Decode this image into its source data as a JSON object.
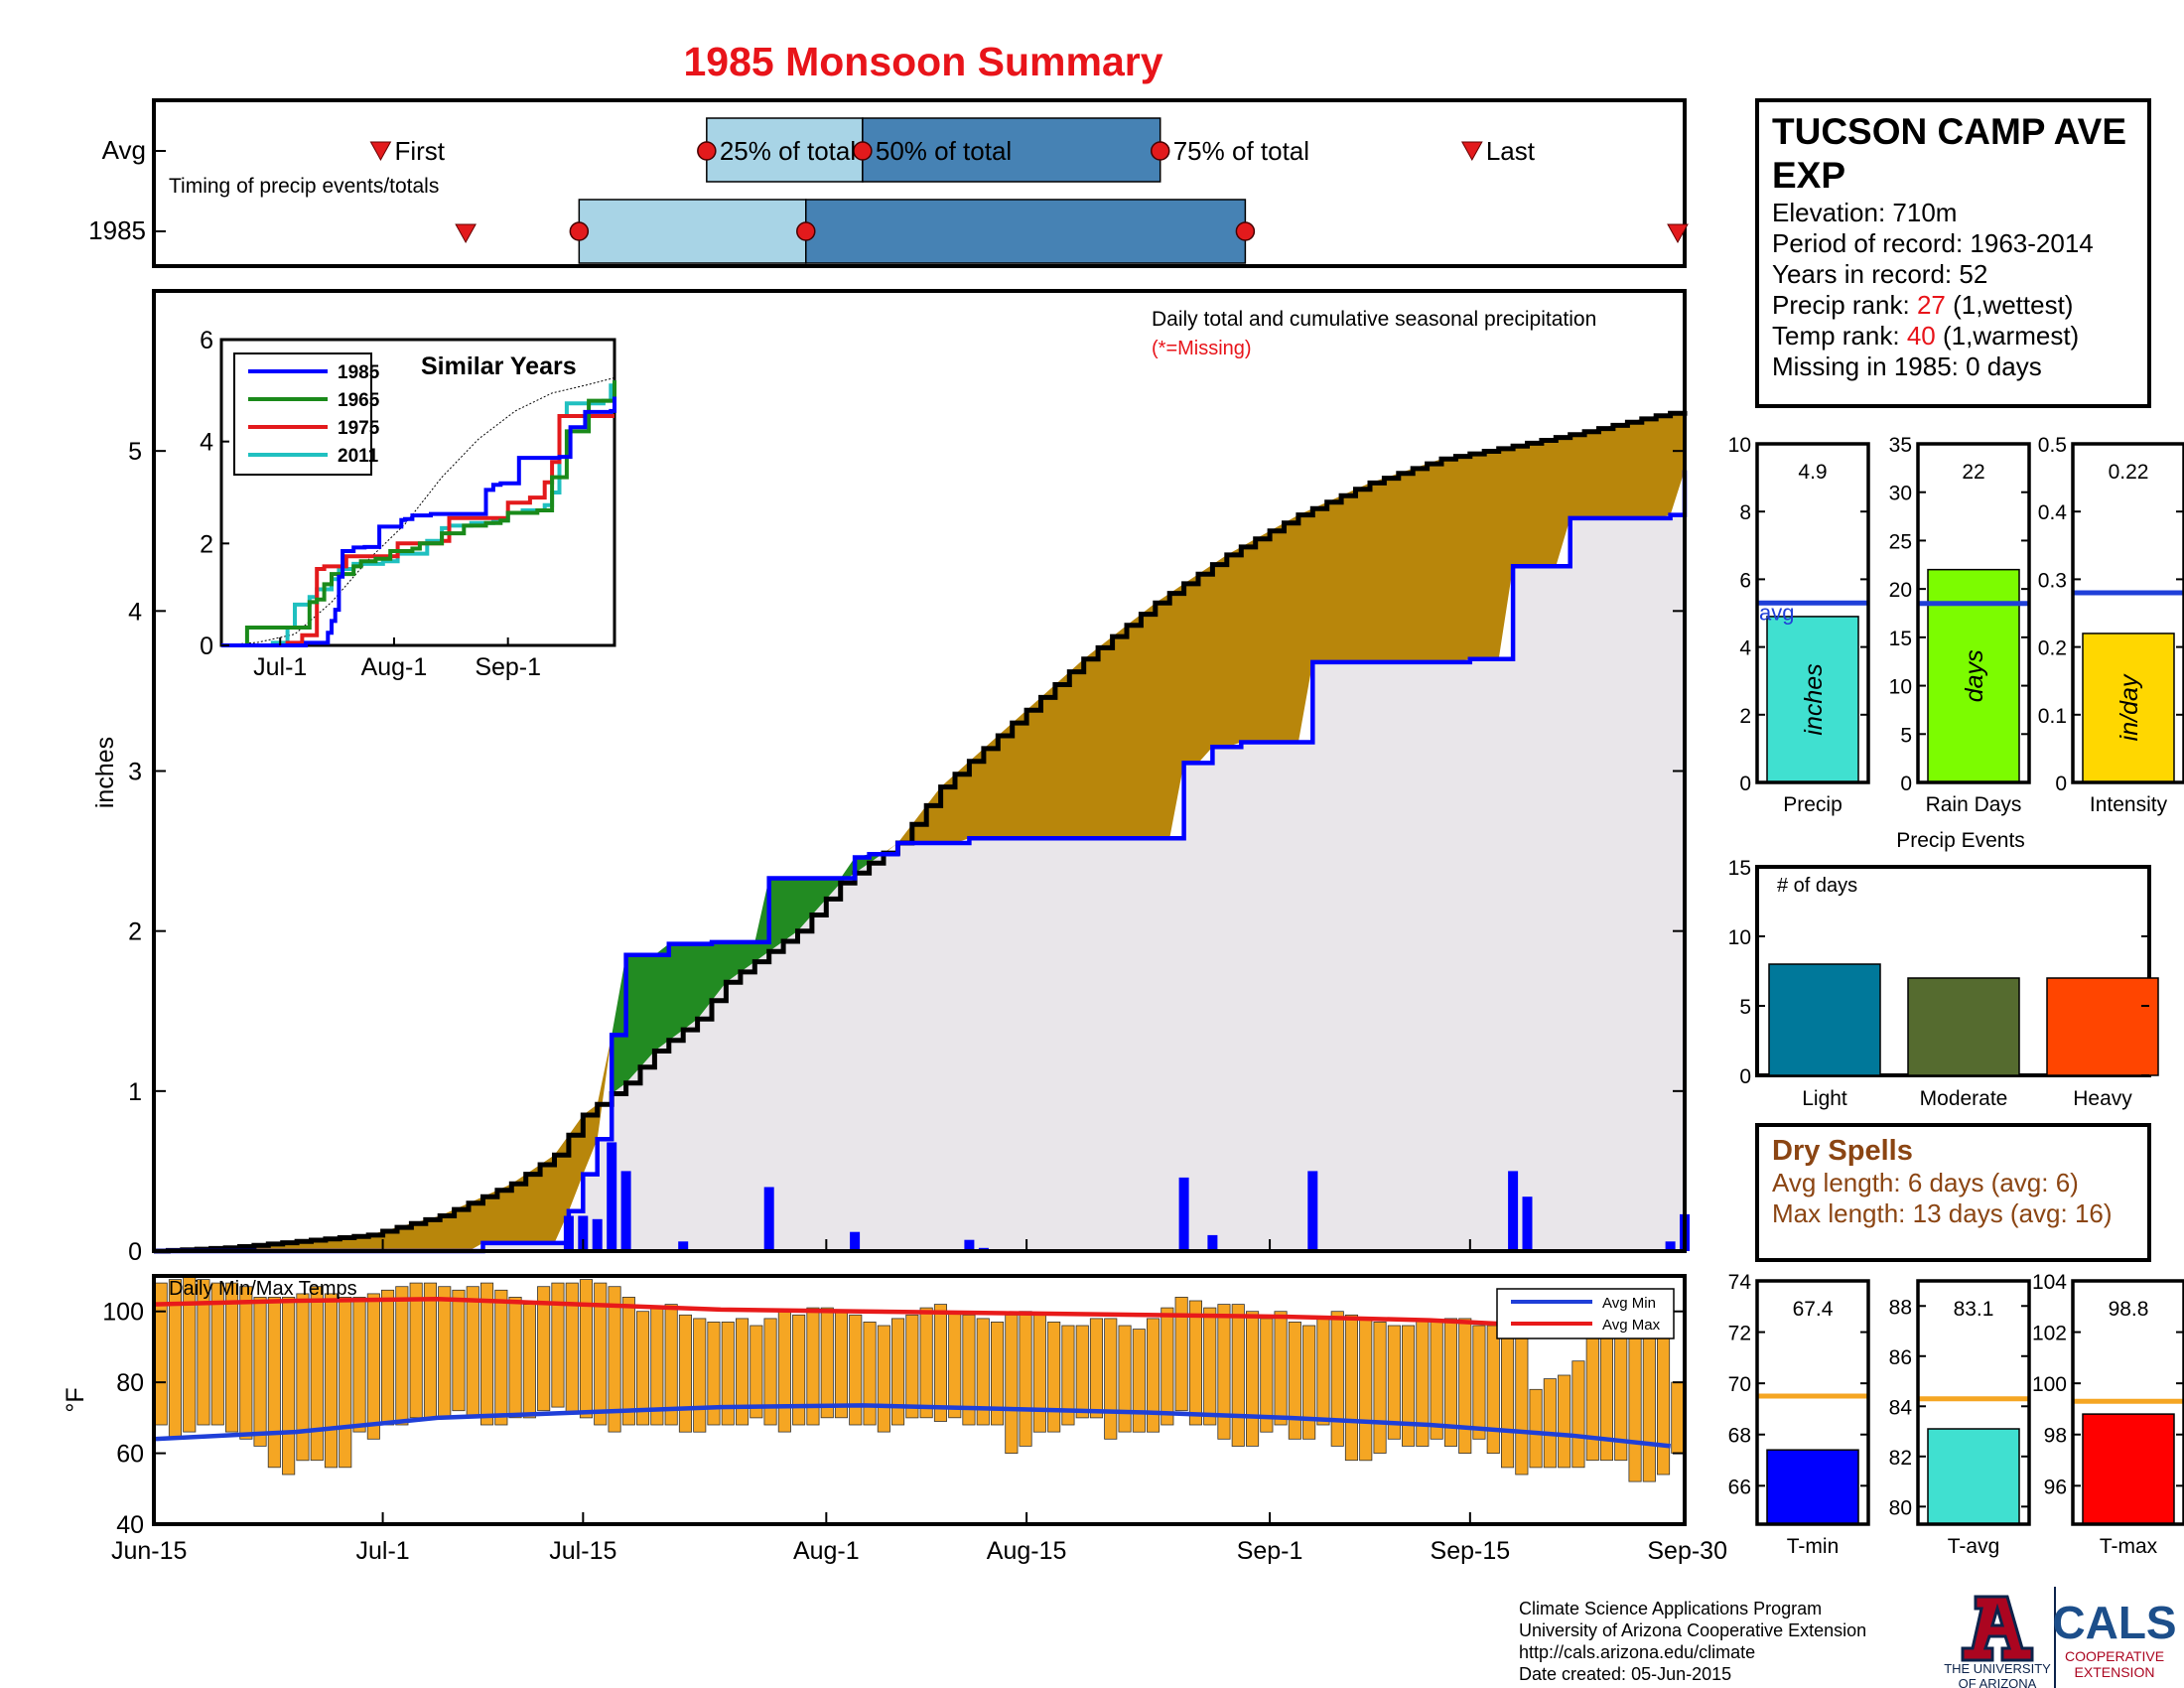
{
  "title": "1985 Monsoon Summary",
  "timing": {
    "row_avg": "Avg",
    "row_year": "1985",
    "subtitle": "Timing of precip events/totals",
    "first_label": "First",
    "q25_label": "25% of total",
    "q50_label": "50% of total",
    "q75_label": "75% of total",
    "last_label": "Last",
    "avg": {
      "first": 16,
      "q25": 39,
      "q50": 50,
      "q75": 71,
      "last": 93
    },
    "year": {
      "first": 22,
      "q25": 30,
      "q50": 46,
      "q75": 77,
      "last": 108
    },
    "colors": {
      "light": "#a8d4e6",
      "dark": "#4682b4",
      "marker": "#e31a1c"
    }
  },
  "station": {
    "name_line1": "TUCSON CAMP AVE",
    "name_line2": "EXP",
    "elevation": "Elevation: 710m",
    "period": "Period of record: 1963-2014",
    "years": "Years in record: 52",
    "precip_rank_label": "Precip rank: ",
    "precip_rank_value": "27",
    "precip_rank_note": " (1,wettest)",
    "temp_rank_label": "Temp rank: ",
    "temp_rank_value": "40",
    "temp_rank_note": " (1,warmest)",
    "missing": "Missing in 1985: 0 days"
  },
  "chart_data": [
    {
      "id": "cumulative",
      "type": "area",
      "annotation": "Daily total and cumulative seasonal precipitation",
      "missing_note": "(*=Missing)",
      "ylabel": "inches",
      "ylim": [
        0,
        6
      ],
      "yticks": [
        0,
        1,
        2,
        3,
        4,
        5
      ],
      "x_tick_labels": [
        "Jun-15",
        "Jul-1",
        "Jul-15",
        "Aug-1",
        "Aug-15",
        "Sep-1",
        "Sep-15",
        "Sep-30"
      ],
      "x_tick_days": [
        0,
        16,
        30,
        47,
        61,
        78,
        92,
        107
      ],
      "avg_cumulative": {
        "days": [
          0,
          5,
          10,
          15,
          20,
          25,
          28,
          30,
          33,
          35,
          38,
          40,
          45,
          48,
          52,
          55,
          60,
          65,
          70,
          75,
          80,
          85,
          90,
          95,
          100,
          105,
          107
        ],
        "values": [
          0,
          0.02,
          0.06,
          0.1,
          0.22,
          0.42,
          0.6,
          0.85,
          1.05,
          1.25,
          1.45,
          1.68,
          2.0,
          2.3,
          2.55,
          2.9,
          3.3,
          3.7,
          4.05,
          4.35,
          4.6,
          4.8,
          4.95,
          5.03,
          5.12,
          5.22,
          5.25
        ]
      },
      "year_cumulative": {
        "days": [
          0,
          23,
          29,
          30,
          31,
          32,
          33,
          36,
          39,
          43,
          45,
          49,
          50,
          52,
          57,
          72,
          74,
          76,
          81,
          92,
          95,
          99,
          106,
          107
        ],
        "values": [
          0,
          0.05,
          0.25,
          0.48,
          0.7,
          1.35,
          1.85,
          1.92,
          1.93,
          2.33,
          2.33,
          2.46,
          2.48,
          2.55,
          2.58,
          3.05,
          3.15,
          3.18,
          3.68,
          3.7,
          4.28,
          4.58,
          4.6,
          4.88
        ]
      },
      "daily_days": [
        29,
        30,
        31,
        32,
        33,
        37,
        43,
        49,
        57,
        58,
        72,
        74,
        81,
        95,
        96,
        106,
        107
      ],
      "daily_values": [
        0.22,
        0.22,
        0.2,
        0.68,
        0.5,
        0.06,
        0.4,
        0.12,
        0.07,
        0.02,
        0.46,
        0.1,
        0.5,
        0.5,
        0.34,
        0.06,
        0.23
      ],
      "colors": {
        "avg_fill": "#b8860b",
        "wet_fill": "#228b22",
        "base_fill": "#e9e6ea",
        "year_line": "#0000ff",
        "avg_line": "#000000"
      }
    },
    {
      "id": "similar-years",
      "type": "line",
      "title": "Similar Years",
      "ylim": [
        0,
        6
      ],
      "yticks": [
        0,
        2,
        4,
        6
      ],
      "x_tick_labels": [
        "Jul-1",
        "Aug-1",
        "Sep-1"
      ],
      "x_tick_days": [
        16,
        47,
        78
      ],
      "series": [
        {
          "name": "1985",
          "color": "#0000ff",
          "days": [
            0,
            23,
            29,
            30,
            31,
            32,
            33,
            36,
            39,
            43,
            45,
            49,
            50,
            52,
            57,
            72,
            74,
            76,
            81,
            92,
            95,
            99,
            106,
            107
          ],
          "values": [
            0,
            0.05,
            0.25,
            0.48,
            0.7,
            1.35,
            1.85,
            1.92,
            1.93,
            2.33,
            2.33,
            2.46,
            2.48,
            2.55,
            2.58,
            3.05,
            3.15,
            3.18,
            3.68,
            3.7,
            4.28,
            4.58,
            4.6,
            4.88
          ]
        },
        {
          "name": "1965",
          "color": "#1a8a1a",
          "days": [
            0,
            7,
            20,
            24,
            26,
            28,
            30,
            36,
            38,
            42,
            46,
            52,
            54,
            60,
            66,
            72,
            76,
            78,
            86,
            90,
            94,
            100,
            107
          ],
          "values": [
            0,
            0.35,
            0.35,
            0.85,
            0.9,
            1.2,
            1.4,
            1.55,
            1.65,
            1.7,
            1.85,
            1.9,
            2.0,
            2.2,
            2.35,
            2.4,
            2.45,
            2.6,
            2.65,
            3.3,
            4.2,
            4.8,
            5.2
          ]
        },
        {
          "name": "1975",
          "color": "#e31a1c",
          "days": [
            0,
            18,
            22,
            26,
            28,
            32,
            34,
            44,
            48,
            54,
            60,
            62,
            72,
            78,
            84,
            88,
            90,
            92,
            107
          ],
          "values": [
            0,
            0.05,
            0.2,
            1.5,
            1.55,
            1.55,
            1.75,
            1.75,
            2.0,
            2.0,
            2.05,
            2.5,
            2.5,
            2.8,
            2.9,
            3.2,
            3.6,
            4.5,
            4.5
          ]
        },
        {
          "name": "2011",
          "color": "#20c0c0",
          "days": [
            0,
            14,
            18,
            20,
            24,
            26,
            30,
            32,
            36,
            44,
            48,
            56,
            60,
            62,
            68,
            74,
            78,
            82,
            88,
            90,
            92,
            94,
            104,
            106,
            107
          ],
          "values": [
            0,
            0.05,
            0.35,
            0.8,
            0.95,
            1.1,
            1.3,
            1.5,
            1.6,
            1.65,
            1.8,
            2.05,
            2.3,
            2.35,
            2.4,
            2.45,
            2.6,
            2.65,
            2.75,
            3.0,
            4.5,
            4.75,
            4.8,
            5.1,
            5.2
          ]
        }
      ],
      "avg_line": {
        "days": [
          0,
          10,
          20,
          30,
          40,
          50,
          60,
          70,
          80,
          90,
          100,
          107
        ],
        "values": [
          0,
          0.06,
          0.22,
          0.85,
          1.68,
          2.38,
          3.3,
          4.05,
          4.6,
          4.95,
          5.12,
          5.25
        ]
      }
    },
    {
      "id": "temps",
      "type": "bar",
      "title": "Daily Min/Max Temps",
      "ylabel": "°F",
      "ylim": [
        40,
        110
      ],
      "yticks": [
        40,
        60,
        80,
        100
      ],
      "x_tick_labels": [
        "Jun-15",
        "Jul-1",
        "Jul-15",
        "Aug-1",
        "Aug-15",
        "Sep-1",
        "Sep-15",
        "Sep-30"
      ],
      "x_tick_days": [
        0,
        16,
        30,
        47,
        61,
        78,
        92,
        107
      ],
      "legend": [
        "Avg Min",
        "Avg Max"
      ],
      "tmax": [
        108,
        109,
        110,
        109,
        108,
        108,
        107,
        104,
        104,
        104,
        105,
        107,
        105,
        104,
        104,
        105,
        106,
        107,
        108,
        108,
        107,
        106,
        107,
        108,
        106,
        104,
        102,
        107,
        108,
        108,
        109,
        108,
        107,
        104,
        100,
        101,
        102,
        99,
        98,
        97,
        97,
        98,
        96,
        98,
        100,
        99,
        101,
        101,
        100,
        99,
        97,
        96,
        98,
        99,
        101,
        102,
        100,
        99,
        98,
        97,
        99,
        100,
        99,
        97,
        96,
        96,
        98,
        98,
        96,
        95,
        98,
        101,
        104,
        103,
        101,
        102,
        102,
        100,
        98,
        100,
        97,
        96,
        98,
        100,
        99,
        98,
        97,
        96,
        96,
        98,
        97,
        98,
        98,
        96,
        96,
        95,
        95,
        78,
        81,
        82,
        86,
        93,
        95,
        95,
        94,
        93,
        96,
        80
      ],
      "tmin": [
        68,
        64,
        66,
        68,
        68,
        66,
        64,
        62,
        56,
        54,
        58,
        58,
        56,
        56,
        66,
        64,
        68,
        68,
        70,
        70,
        70,
        72,
        70,
        68,
        68,
        70,
        70,
        72,
        73,
        71,
        70,
        68,
        66,
        68,
        68,
        68,
        68,
        66,
        66,
        68,
        68,
        68,
        70,
        68,
        66,
        68,
        68,
        70,
        70,
        68,
        68,
        66,
        68,
        70,
        70,
        69,
        70,
        68,
        68,
        68,
        60,
        62,
        66,
        66,
        68,
        70,
        70,
        64,
        66,
        66,
        66,
        68,
        72,
        68,
        68,
        64,
        62,
        62,
        66,
        68,
        64,
        64,
        68,
        62,
        58,
        58,
        60,
        64,
        62,
        62,
        64,
        62,
        60,
        64,
        60,
        56,
        54,
        56,
        56,
        56,
        56,
        58,
        58,
        58,
        52,
        52,
        54,
        60
      ],
      "avg_min": {
        "days": [
          0,
          10,
          20,
          30,
          40,
          50,
          60,
          70,
          80,
          90,
          100,
          107
        ],
        "values": [
          64,
          66,
          70,
          71.5,
          73,
          73.5,
          72.5,
          71.5,
          70,
          68,
          65,
          62
        ]
      },
      "avg_max": {
        "days": [
          0,
          10,
          20,
          30,
          40,
          50,
          60,
          70,
          80,
          90,
          100,
          107
        ],
        "values": [
          102,
          103,
          103.5,
          102,
          100.5,
          100,
          99.5,
          99,
          98.5,
          97.5,
          95.5,
          94
        ]
      },
      "colors": {
        "bar": "#f5a623",
        "avg_min": "#1f3fd8",
        "avg_max": "#e81a1a"
      }
    },
    {
      "id": "precip-total",
      "type": "bar",
      "xlabel": "Precip",
      "ylim": [
        0,
        10
      ],
      "yticks": [
        0,
        2,
        4,
        6,
        8,
        10
      ],
      "value": 4.9,
      "value_label": "4.9",
      "avg": 5.3,
      "avg_label": "avg",
      "unit_label": "inches",
      "color": "#40e0d0"
    },
    {
      "id": "rain-days",
      "type": "bar",
      "xlabel": "Rain Days",
      "ylim": [
        0,
        35
      ],
      "yticks": [
        0,
        5,
        10,
        15,
        20,
        25,
        30,
        35
      ],
      "value": 22,
      "value_label": "22",
      "avg": 18.5,
      "unit_label": "days",
      "color": "#7cfc00"
    },
    {
      "id": "intensity",
      "type": "bar",
      "xlabel": "Intensity",
      "ylim": [
        0,
        0.5
      ],
      "yticks": [
        0,
        0.1,
        0.2,
        0.3,
        0.4,
        0.5
      ],
      "ytick_labels": [
        "0",
        "0.1",
        "0.2",
        "0.3",
        "0.4",
        "0.5"
      ],
      "value": 0.22,
      "value_label": "0.22",
      "avg": 0.28,
      "unit_label": "in/day",
      "color": "#ffd700"
    },
    {
      "id": "precip-events",
      "type": "bar",
      "title": "Precip Events",
      "ylabel": "# of days",
      "ylim": [
        0,
        15
      ],
      "yticks": [
        0,
        5,
        10,
        15
      ],
      "categories": [
        "Light",
        "Moderate",
        "Heavy"
      ],
      "values": [
        8,
        7,
        7
      ],
      "colors": [
        "#00789a",
        "#556b2f",
        "#ff4500"
      ]
    },
    {
      "id": "t-min",
      "type": "bar",
      "xlabel": "T-min",
      "ylim": [
        64.5,
        74
      ],
      "yticks": [
        66,
        68,
        70,
        72,
        74
      ],
      "value": 67.4,
      "value_label": "67.4",
      "avg": 69.5,
      "color": "#0000ff"
    },
    {
      "id": "t-avg",
      "type": "bar",
      "xlabel": "T-avg",
      "ylim": [
        79.3,
        89
      ],
      "yticks": [
        80,
        82,
        84,
        86,
        88
      ],
      "value": 83.1,
      "value_label": "83.1",
      "avg": 84.3,
      "color": "#40e0d0"
    },
    {
      "id": "t-max",
      "type": "bar",
      "xlabel": "T-max",
      "ylim": [
        94.5,
        104
      ],
      "yticks": [
        96,
        98,
        100,
        102,
        104
      ],
      "value": 98.8,
      "value_label": "98.8",
      "avg": 99.3,
      "color": "#ff0000"
    }
  ],
  "dry_spells": {
    "title": "Dry Spells",
    "avg_length": "Avg length: 6 days (avg: 6)",
    "max_length": "Max length: 13 days (avg: 16)"
  },
  "footer": {
    "line1": "Climate Science Applications Program",
    "line2": "University of Arizona Cooperative Extension",
    "line3": "http://cals.arizona.edu/climate",
    "line4": " Date created: 05-Jun-2015"
  },
  "logos": {
    "ua_line1": "THE UNIVERSITY",
    "ua_line2": "OF ARIZONA",
    "cals": "CALS",
    "cals_sub1": "COOPERATIVE",
    "cals_sub2": "EXTENSION"
  }
}
